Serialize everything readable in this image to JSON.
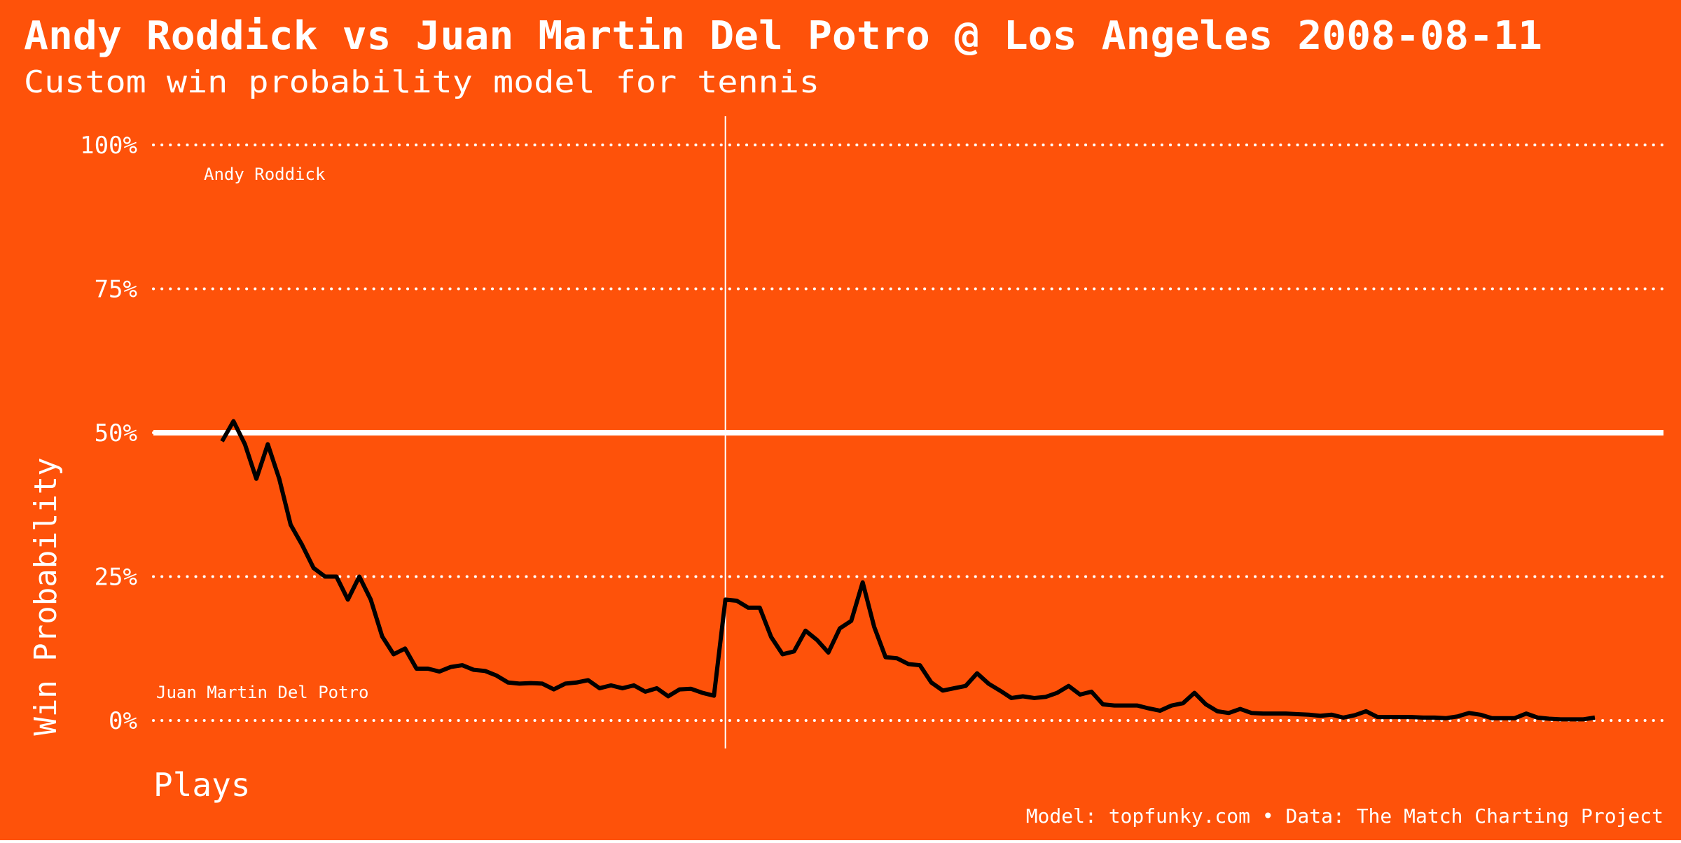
{
  "chart_data": {
    "type": "line",
    "title": "Andy Roddick vs Juan Martin Del Potro @ Los Angeles 2008-08-11",
    "subtitle": "Custom win probability model for tennis",
    "x_label": "Plays",
    "y_label": "Win Probability",
    "caption": "Model: topfunky.com • Data: The Match Charting Project",
    "annotations": [
      "Andy Roddick",
      "Juan Martin Del Potro"
    ],
    "x": [
      1,
      2,
      3,
      4,
      5,
      6,
      7,
      8,
      9,
      10,
      11,
      12,
      13,
      14,
      15,
      16,
      17,
      18,
      19,
      20,
      21,
      22,
      23,
      24,
      25,
      26,
      27,
      28,
      29,
      30,
      31,
      32,
      33,
      34,
      35,
      36,
      37,
      38,
      39,
      40,
      41,
      42,
      43,
      44,
      45,
      46,
      47,
      48,
      49,
      50,
      51,
      52,
      53,
      54,
      55,
      56,
      57,
      58,
      59,
      60,
      61,
      62,
      63,
      64,
      65,
      66,
      67,
      68,
      69,
      70,
      71,
      72,
      73,
      74,
      75,
      76,
      77,
      78,
      79,
      80,
      81,
      82,
      83,
      84,
      85,
      86,
      87,
      88,
      89,
      90,
      91,
      92,
      93,
      94,
      95,
      96,
      97,
      98,
      99,
      100,
      101,
      102,
      103,
      104,
      105,
      106,
      107,
      108,
      109,
      110,
      111,
      112,
      113,
      114,
      115,
      116,
      117,
      118,
      119,
      120,
      121
    ],
    "series": [
      {
        "color": "#000000",
        "values": [
          48.5,
          52,
          48,
          42,
          48,
          42,
          34,
          30.5,
          26.5,
          25,
          25,
          21,
          25,
          21,
          14.6,
          11.5,
          12.5,
          9,
          9,
          8.5,
          9.3,
          9.6,
          8.8,
          8.6,
          7.8,
          6.6,
          6.4,
          6.5,
          6.4,
          5.4,
          6.4,
          6.6,
          7,
          5.6,
          6.1,
          5.6,
          6.1,
          5,
          5.6,
          4.2,
          5.4,
          5.5,
          4.8,
          4.3,
          21,
          20.8,
          19.6,
          19.6,
          14.5,
          11.5,
          12,
          15.6,
          14,
          11.8,
          16,
          17.3,
          24,
          16.3,
          11,
          10.8,
          9.8,
          9.6,
          6.6,
          5.2,
          5.6,
          6,
          8.2,
          6.4,
          5.2,
          3.9,
          4.2,
          3.9,
          4.1,
          4.8,
          6,
          4.5,
          5,
          2.8,
          2.6,
          2.6,
          2.6,
          2.1,
          1.7,
          2.6,
          3,
          4.8,
          2.8,
          1.6,
          1.3,
          2,
          1.3,
          1.2,
          1.2,
          1.2,
          1.1,
          1,
          0.8,
          1,
          0.5,
          0.9,
          1.6,
          0.6,
          0.6,
          0.6,
          0.6,
          0.5,
          0.5,
          0.4,
          0.7,
          1.3,
          1,
          0.4,
          0.4,
          0.4,
          1.2,
          0.5,
          0.3,
          0.2,
          0.2,
          0.2,
          0.5
        ]
      }
    ],
    "xlim": [
      -5,
      127
    ],
    "ylim": [
      0,
      100
    ],
    "yticks": [
      {
        "value": 0,
        "label": "0%"
      },
      {
        "value": 25,
        "label": "25%"
      },
      {
        "value": 50,
        "label": "50%"
      },
      {
        "value": 75,
        "label": "75%"
      },
      {
        "value": 100,
        "label": "100%"
      }
    ],
    "reference_line": 50,
    "vline": 45,
    "grid": true,
    "background": "#fe520a"
  }
}
